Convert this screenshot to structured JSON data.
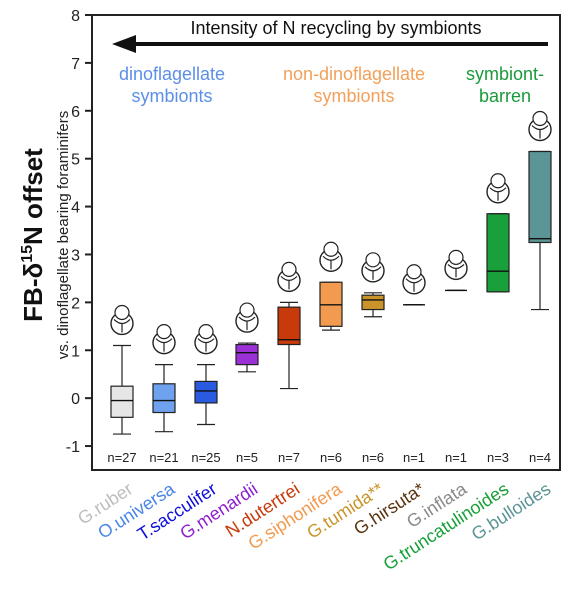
{
  "chart_data": {
    "type": "box",
    "ylabel_main": "FB-δ15N offset",
    "ylabel_sub": "vs. dinoflagellate bearing foraminifers",
    "ylim": [
      -1.5,
      8
    ],
    "yticks": [
      -1,
      0,
      1,
      2,
      3,
      4,
      5,
      6,
      7,
      8
    ],
    "arrow_label": "Intensity of N recycling by symbionts",
    "groups": [
      {
        "label": "dinoflagellate\nsymbionts",
        "color": "#5b8fe8"
      },
      {
        "label": "non-dinoflagellate\nsymbionts",
        "color": "#f2a05a"
      },
      {
        "label": "symbiont-\nbarren",
        "color": "#1a9a3a"
      }
    ],
    "series": [
      {
        "name": "G.ruber",
        "n": "n=27",
        "color": "#bdbdbd",
        "fill": "#e6e6e6",
        "whisker_low": -0.75,
        "q1": -0.4,
        "median": -0.05,
        "q3": 0.25,
        "whisker_high": 1.1
      },
      {
        "name": "O.universa",
        "n": "n=21",
        "color": "#4a86e8",
        "fill": "#6fa2ee",
        "whisker_low": -0.7,
        "q1": -0.3,
        "median": -0.05,
        "q3": 0.3,
        "whisker_high": 0.7
      },
      {
        "name": "T.sacculifer",
        "n": "n=25",
        "color": "#1010dd",
        "fill": "#2a5ae0",
        "whisker_low": -0.55,
        "q1": -0.1,
        "median": 0.15,
        "q3": 0.35,
        "whisker_high": 0.7
      },
      {
        "name": "G.menardii",
        "n": "n=5",
        "color": "#8e1fcf",
        "fill": "#9b30d6",
        "whisker_low": 0.55,
        "q1": 0.7,
        "median": 0.95,
        "q3": 1.12,
        "whisker_high": 1.15
      },
      {
        "name": "N.dutertrei",
        "n": "n=7",
        "color": "#c83a0a",
        "fill": "#c83a0a",
        "whisker_low": 0.2,
        "q1": 1.12,
        "median": 1.22,
        "q3": 1.9,
        "whisker_high": 2.0
      },
      {
        "name": "G.siphonifera",
        "n": "n=6",
        "color": "#f29a4f",
        "fill": "#f29a4f",
        "whisker_low": 1.42,
        "q1": 1.5,
        "median": 1.95,
        "q3": 2.42,
        "whisker_high": 2.42
      },
      {
        "name": "G.tumida**",
        "n": "n=6",
        "color": "#c9952a",
        "fill": "#c9952a",
        "whisker_low": 1.7,
        "q1": 1.85,
        "median": 2.05,
        "q3": 2.15,
        "whisker_high": 2.2
      },
      {
        "name": "G.hirsuta*",
        "n": "n=1",
        "color": "#5a3410",
        "fill": "#5a3410",
        "whisker_low": 1.95,
        "q1": 1.95,
        "median": 1.95,
        "q3": 1.95,
        "whisker_high": 1.95
      },
      {
        "name": "G.inflata",
        "n": "n=1",
        "color": "#8a8a8a",
        "fill": "#8a8a8a",
        "whisker_low": 2.25,
        "q1": 2.25,
        "median": 2.25,
        "q3": 2.25,
        "whisker_high": 2.25
      },
      {
        "name": "G.truncatulinoides",
        "n": "n=3",
        "color": "#19a03a",
        "fill": "#19a03a",
        "whisker_low": 2.22,
        "q1": 2.22,
        "median": 2.65,
        "q3": 3.85,
        "whisker_high": 3.85
      },
      {
        "name": "G.bulloides",
        "n": "n=4",
        "color": "#5b9595",
        "fill": "#5b9595",
        "whisker_low": 1.85,
        "q1": 3.25,
        "median": 3.33,
        "q3": 5.15,
        "whisker_high": 5.15
      }
    ]
  }
}
